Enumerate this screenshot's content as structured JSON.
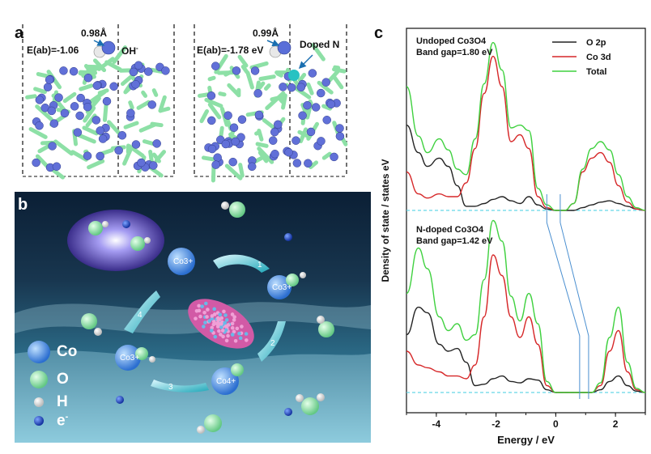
{
  "panel_a": {
    "letter": "a",
    "left": {
      "energy": "E(ab)=-1.06",
      "bond": "0.98Å",
      "species": "OH"
    },
    "right": {
      "energy": "E(ab)=-1.78 eV",
      "bond": "0.99Å",
      "species": "Doped N"
    }
  },
  "panel_b": {
    "letter": "b",
    "legend": [
      {
        "label": "Co",
        "color": "#3b7fe0"
      },
      {
        "label": "O",
        "color": "#8fe3a5"
      },
      {
        "label": "H",
        "color": "#f2f2f2"
      },
      {
        "label": "e",
        "color": "#1a3fc9"
      }
    ],
    "ions": [
      "Co3+",
      "Co3+",
      "Co3+",
      "Co4+"
    ],
    "steps": [
      "1",
      "2",
      "3",
      "4"
    ]
  },
  "panel_c": {
    "letter": "c"
  },
  "chart_data": {
    "type": "line",
    "xlabel": "Energy / eV",
    "ylabel": "Density of state / states eV",
    "xlim": [
      -5,
      3
    ],
    "xticks": [
      -4,
      -2,
      0,
      2
    ],
    "legend": {
      "position": "top-right",
      "entries": [
        "O 2p",
        "Co 3d",
        "Total"
      ]
    },
    "colors": {
      "O 2p": "#222222",
      "Co 3d": "#d62728",
      "Total": "#3fd13f"
    },
    "panels": [
      {
        "title": "Undoped Co3O4",
        "band_gap": "Band gap=1.80 eV",
        "baseline_color": "#66d6e6",
        "series": [
          {
            "name": "O 2p",
            "x": [
              -5,
              -4.6,
              -4.3,
              -3.9,
              -3.6,
              -3.3,
              -3,
              -2.7,
              -2.4,
              -2.1,
              -1.8,
              -1.5,
              -1.2,
              -0.9,
              -0.6,
              -0.3,
              0,
              0.3,
              0.6,
              0.9,
              1.2,
              1.5,
              1.8,
              2.1,
              2.4,
              2.7,
              3
            ],
            "y": [
              0.62,
              0.42,
              0.32,
              0.38,
              0.32,
              0.18,
              0.03,
              0.03,
              0.05,
              0.08,
              0.1,
              0.07,
              0.05,
              0.1,
              0.04,
              0.01,
              0,
              0,
              0,
              0.02,
              0.04,
              0.06,
              0.07,
              0.05,
              0.03,
              0.01,
              0
            ]
          },
          {
            "name": "Co 3d",
            "x": [
              -5,
              -4.6,
              -4.3,
              -3.9,
              -3.6,
              -3.3,
              -3,
              -2.7,
              -2.4,
              -2.1,
              -1.8,
              -1.5,
              -1.2,
              -0.9,
              -0.6,
              -0.3,
              0,
              0.3,
              0.6,
              0.9,
              1.2,
              1.5,
              1.8,
              2.1,
              2.4,
              2.7,
              3
            ],
            "y": [
              0.28,
              0.12,
              0.09,
              0.12,
              0.1,
              0.1,
              0.2,
              0.45,
              0.85,
              1.12,
              0.9,
              0.5,
              0.55,
              0.45,
              0.1,
              0.02,
              0,
              0,
              0.05,
              0.28,
              0.38,
              0.42,
              0.35,
              0.18,
              0.06,
              0.01,
              0
            ]
          },
          {
            "name": "Total",
            "x": [
              -5,
              -4.6,
              -4.3,
              -3.9,
              -3.6,
              -3.3,
              -3,
              -2.7,
              -2.4,
              -2.1,
              -1.8,
              -1.5,
              -1.2,
              -0.9,
              -0.6,
              -0.3,
              0,
              0.3,
              0.6,
              0.9,
              1.2,
              1.5,
              1.8,
              2.1,
              2.4,
              2.7,
              3
            ],
            "y": [
              0.9,
              0.54,
              0.42,
              0.52,
              0.44,
              0.3,
              0.26,
              0.52,
              0.92,
              1.22,
              1.02,
              0.6,
              0.62,
              0.58,
              0.16,
              0.04,
              0,
              0,
              0.05,
              0.3,
              0.45,
              0.5,
              0.44,
              0.26,
              0.1,
              0.02,
              0
            ]
          }
        ]
      },
      {
        "title": "N-doped Co3O4",
        "band_gap": "Band gap=1.42 eV",
        "baseline_color": "#66d6e6",
        "series": [
          {
            "name": "O 2p",
            "x": [
              -5,
              -4.6,
              -4.3,
              -3.9,
              -3.6,
              -3.3,
              -3,
              -2.7,
              -2.4,
              -2.1,
              -1.8,
              -1.5,
              -1.2,
              -0.9,
              -0.6,
              -0.3,
              0,
              0.3,
              0.6,
              0.9,
              1.2,
              1.5,
              1.8,
              2.1,
              2.4,
              2.7,
              3
            ],
            "y": [
              0.42,
              0.62,
              0.58,
              0.35,
              0.3,
              0.32,
              0.22,
              0.05,
              0.06,
              0.1,
              0.12,
              0.08,
              0.07,
              0.1,
              0.09,
              0.02,
              0,
              0,
              0,
              0,
              0,
              0.02,
              0.08,
              0.12,
              0.05,
              0.01,
              0
            ]
          },
          {
            "name": "Co 3d",
            "x": [
              -5,
              -4.6,
              -4.3,
              -3.9,
              -3.6,
              -3.3,
              -3,
              -2.7,
              -2.4,
              -2.1,
              -1.8,
              -1.5,
              -1.2,
              -0.9,
              -0.6,
              -0.3,
              0,
              0.3,
              0.6,
              0.9,
              1.2,
              1.5,
              1.8,
              2.1,
              2.4,
              2.7,
              3
            ],
            "y": [
              0.3,
              0.2,
              0.18,
              0.15,
              0.12,
              0.12,
              0.1,
              0.2,
              0.55,
              1.0,
              0.85,
              0.55,
              0.4,
              0.55,
              0.35,
              0.05,
              0,
              0,
              0,
              0,
              0,
              0.05,
              0.3,
              0.45,
              0.15,
              0.02,
              0
            ]
          },
          {
            "name": "Total",
            "x": [
              -5,
              -4.6,
              -4.3,
              -3.9,
              -3.6,
              -3.3,
              -3,
              -2.7,
              -2.4,
              -2.1,
              -1.8,
              -1.5,
              -1.2,
              -0.9,
              -0.6,
              -0.3,
              0,
              0.3,
              0.6,
              0.9,
              1.2,
              1.5,
              1.8,
              2.1,
              2.4,
              2.7,
              3
            ],
            "y": [
              0.72,
              1.05,
              0.9,
              0.55,
              0.45,
              0.5,
              0.38,
              0.42,
              0.82,
              1.25,
              1.1,
              0.7,
              0.52,
              0.72,
              0.5,
              0.08,
              0,
              0,
              0,
              0,
              0,
              0.07,
              0.4,
              0.62,
              0.22,
              0.03,
              0
            ]
          }
        ]
      }
    ]
  }
}
